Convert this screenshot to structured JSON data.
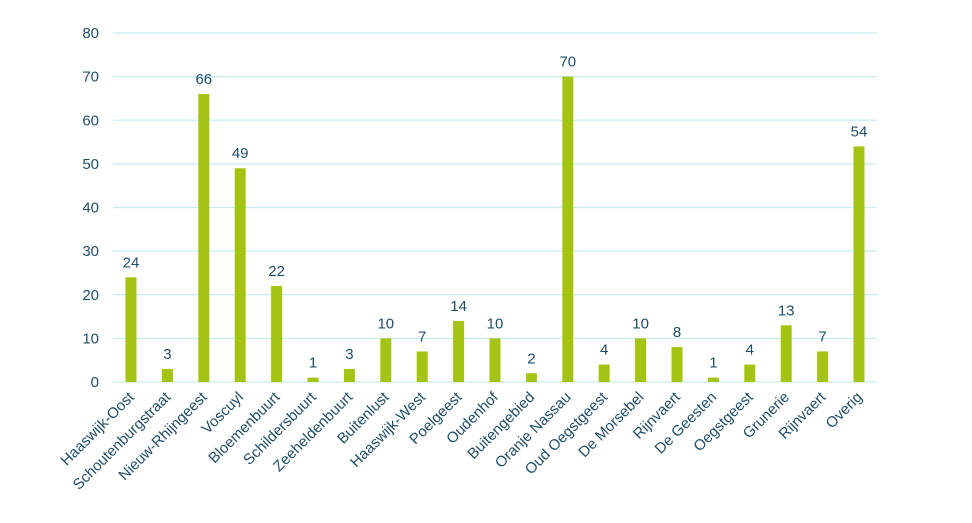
{
  "chart_data": {
    "type": "bar",
    "categories": [
      "Haaswijk-Oost",
      "Schoutenburgstraat",
      "Nieuw-Rhijngeest",
      "Voscuyl",
      "Bloemenbuurt",
      "Schildersbuurt",
      "Zeeheldenbuurt",
      "Buitenlust",
      "Haaswijk-West",
      "Poelgeest",
      "Oudenhof",
      "Buitengebied",
      "Oranje Nassau",
      "Oud Oegstgeest",
      "De Morsebel",
      "Rijnvaert",
      "De Geesten",
      "Oegstgeest",
      "Grunerie",
      "Rijnvaert",
      "Overig"
    ],
    "values": [
      24,
      3,
      66,
      49,
      22,
      1,
      3,
      10,
      7,
      14,
      10,
      2,
      70,
      4,
      10,
      8,
      1,
      4,
      13,
      7,
      54
    ],
    "color": "#a5c312",
    "ylim": [
      0,
      80
    ],
    "yticks": [
      0,
      10,
      20,
      30,
      40,
      50,
      60,
      70,
      80
    ],
    "grid": true
  }
}
